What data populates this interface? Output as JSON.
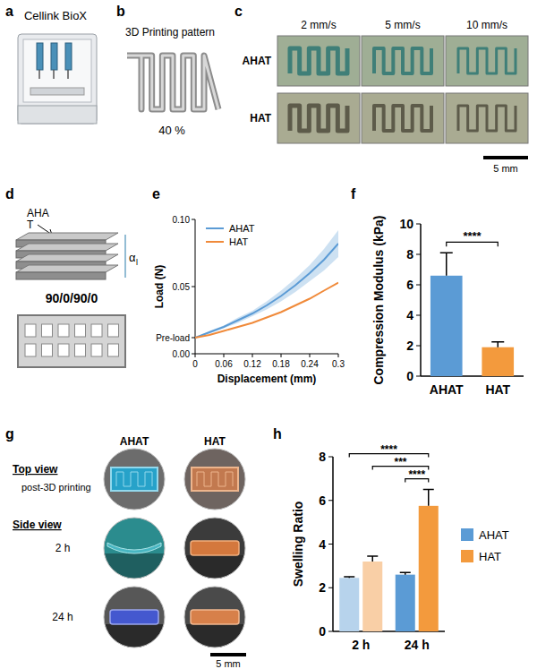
{
  "panels": {
    "a": {
      "label": "a",
      "title": "Cellink BioX"
    },
    "b": {
      "label": "b",
      "title": "3D Printing pattern",
      "infill": "40 %"
    },
    "c": {
      "label": "c",
      "columns": [
        "2 mm/s",
        "5 mm/s",
        "10 mm/s"
      ],
      "rows": [
        "AHAT",
        "HAT"
      ],
      "scale_bar": "5 mm"
    },
    "d": {
      "label": "d",
      "material": "AHA",
      "material_suffix": "T",
      "angle": "α",
      "layer": "l",
      "pattern": "90/0/90/0"
    },
    "e": {
      "label": "e"
    },
    "f": {
      "label": "f"
    },
    "g": {
      "label": "g",
      "columns": [
        "AHAT",
        "HAT"
      ],
      "top_view": "Top view",
      "top_caption": "post-3D printing",
      "side_view": "Side view",
      "rows": [
        "2 h",
        "24 h"
      ],
      "scale_bar": "5 mm"
    },
    "h": {
      "label": "h"
    }
  },
  "chart_data": [
    {
      "type": "line",
      "x_label": "Displacement (mm)",
      "y_label": "Load (N)",
      "x": [
        0,
        0.03,
        0.06,
        0.09,
        0.12,
        0.15,
        0.18,
        0.21,
        0.24,
        0.27,
        0.3
      ],
      "series": [
        {
          "name": "AHAT",
          "color": "#5b9bd5",
          "values": [
            0.012,
            0.016,
            0.02,
            0.025,
            0.03,
            0.036,
            0.043,
            0.051,
            0.06,
            0.07,
            0.082
          ],
          "error": [
            0,
            0.001,
            0.001,
            0.002,
            0.002,
            0.003,
            0.004,
            0.005,
            0.006,
            0.008,
            0.01
          ]
        },
        {
          "name": "HAT",
          "color": "#f08a3a",
          "values": [
            0.012,
            0.014,
            0.017,
            0.02,
            0.023,
            0.027,
            0.031,
            0.036,
            0.041,
            0.047,
            0.053
          ]
        }
      ],
      "xlim": [
        0,
        0.3
      ],
      "ylim": [
        0,
        0.1
      ],
      "xticks": [
        0,
        0.06,
        0.12,
        0.18,
        0.24,
        0.3
      ],
      "yticks": [
        {
          "value": 0,
          "label": "0.00"
        },
        {
          "value": 0.012,
          "label": "Pre-load"
        },
        0.05,
        {
          "value": 0.1,
          "label": "0.10"
        }
      ],
      "legend": "upper left"
    },
    {
      "type": "bar",
      "y_label": "Compression Modulus (kPa)",
      "categories": [
        "AHAT",
        "HAT"
      ],
      "values": [
        6.6,
        1.9
      ],
      "errors": [
        1.5,
        0.35
      ],
      "colors": [
        "#5b9bd5",
        "#f39a3d"
      ],
      "ylim": [
        0,
        10
      ],
      "yticks": [
        0,
        2,
        4,
        6,
        8,
        10
      ],
      "significance": [
        {
          "label": "****",
          "between": [
            0,
            1
          ]
        }
      ]
    },
    {
      "type": "bar",
      "y_label": "Swelling Ratio",
      "categories": [
        "2 h",
        "24 h"
      ],
      "series": [
        {
          "name": "AHAT",
          "color": "#5b9bd5",
          "colors": [
            "#b7d3ec",
            "#5b9bd5"
          ],
          "values": [
            2.45,
            2.6
          ],
          "errors": [
            0.05,
            0.1
          ]
        },
        {
          "name": "HAT",
          "color": "#f39a3d",
          "colors": [
            "#f9cfa6",
            "#f39a3d"
          ],
          "values": [
            3.2,
            5.75
          ],
          "errors": [
            0.25,
            0.75
          ]
        }
      ],
      "ylim": [
        0,
        8
      ],
      "yticks": [
        0,
        2,
        4,
        6,
        8
      ],
      "legend": "right",
      "significance": [
        {
          "label": "****",
          "between": [
            [
              0,
              0
            ],
            [
              1,
              1
            ]
          ]
        },
        {
          "label": "***",
          "between": [
            [
              1,
              0
            ],
            [
              1,
              1
            ]
          ]
        },
        {
          "label": "****",
          "between": [
            [
              0,
              1
            ],
            [
              1,
              1
            ]
          ]
        }
      ]
    }
  ]
}
